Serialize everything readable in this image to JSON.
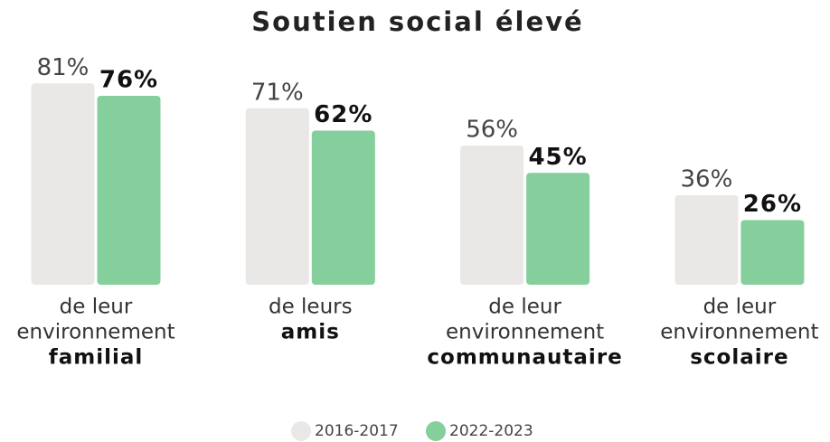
{
  "chart_data": {
    "type": "bar",
    "title": "Soutien social élevé",
    "categories": [
      [
        "de leur",
        "environnement",
        "familial"
      ],
      [
        "de leurs",
        "amis"
      ],
      [
        "de leur",
        "environnement",
        "communautaire"
      ],
      [
        "de leur",
        "environnement",
        "scolaire"
      ]
    ],
    "series": [
      {
        "name": "2016-2017",
        "color": "#e9e8e6",
        "values": [
          81,
          71,
          56,
          36
        ],
        "value_labels": [
          "81%",
          "71%",
          "56%",
          "36%"
        ]
      },
      {
        "name": "2022-2023",
        "color": "#84cf9c",
        "values": [
          76,
          62,
          45,
          26
        ],
        "value_labels": [
          "76%",
          "62%",
          "45%",
          "26%"
        ]
      }
    ],
    "ylim": [
      0,
      100
    ],
    "grid": false
  }
}
